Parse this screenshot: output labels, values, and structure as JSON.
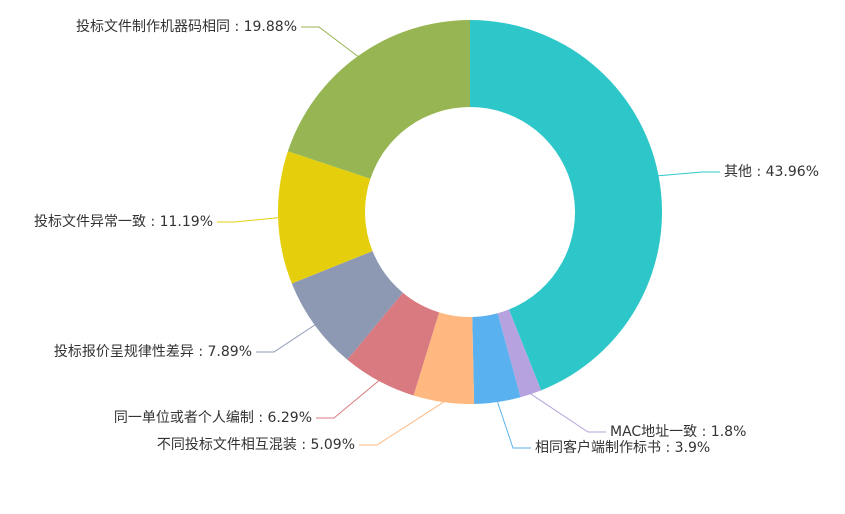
{
  "chart_data": {
    "type": "pie",
    "values": [
      43.96,
      1.8,
      3.9,
      5.09,
      6.29,
      7.89,
      11.19,
      19.88
    ],
    "value_labels": [
      "其他 : 43.96%",
      "MAC地址一致 : 1.8%",
      "相同客户端制作标书 : 3.9%",
      "不同投标文件相互混装 : 5.09%",
      "同一单位或者个人编制 : 6.29%",
      "投标报价呈规律性差异 : 7.89%",
      "投标文件异常一致 : 11.19%",
      "投标文件制作机器码相同 : 19.88%"
    ],
    "colors": [
      "#2ec7c9",
      "#b6a2de",
      "#5ab1ef",
      "#ffb980",
      "#d87a80",
      "#8d98b3",
      "#e5cf0d",
      "#97b552"
    ]
  }
}
